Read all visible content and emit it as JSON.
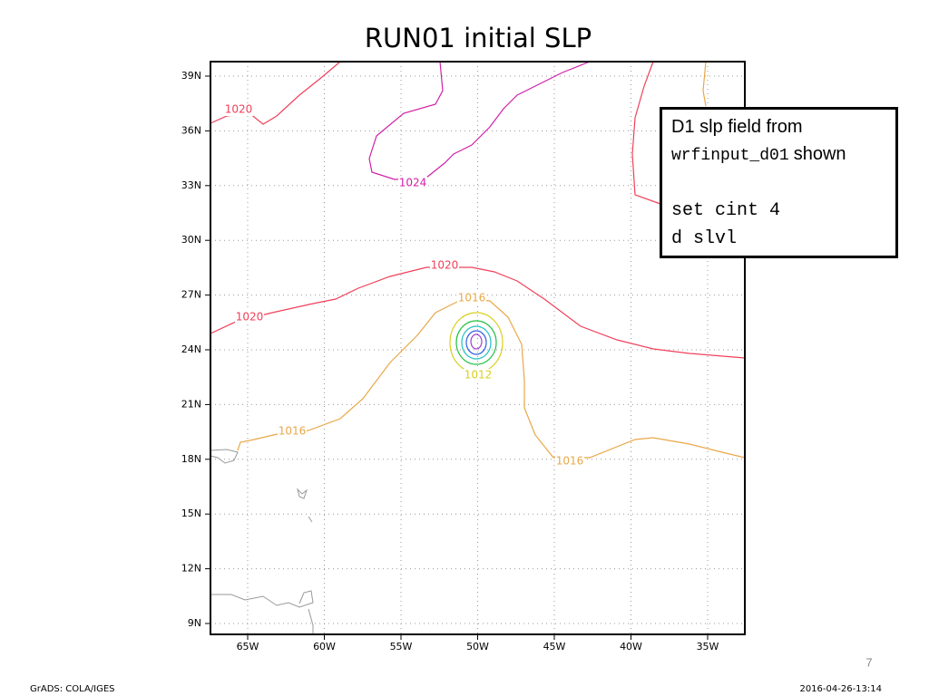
{
  "title": "RUN01 initial SLP",
  "axes": {
    "y_labels": [
      "39N",
      "36N",
      "33N",
      "30N",
      "27N",
      "24N",
      "21N",
      "18N",
      "15N",
      "12N",
      "9N"
    ],
    "x_labels": [
      "65W",
      "60W",
      "55W",
      "50W",
      "45W",
      "40W",
      "35W"
    ]
  },
  "contour_labels": [
    "1020",
    "1024",
    "1020",
    "1016",
    "1020",
    "1012",
    "1016",
    "1016"
  ],
  "note": {
    "line1": "D1 slp field from",
    "code": "wrfinput_d01",
    "after_code": "shown",
    "line3": "set cint 4",
    "line4": "d slvl"
  },
  "footer": {
    "left": "GrADS: COLA/IGES",
    "right": "2016-04-26-13:14",
    "page_number": "7"
  }
}
